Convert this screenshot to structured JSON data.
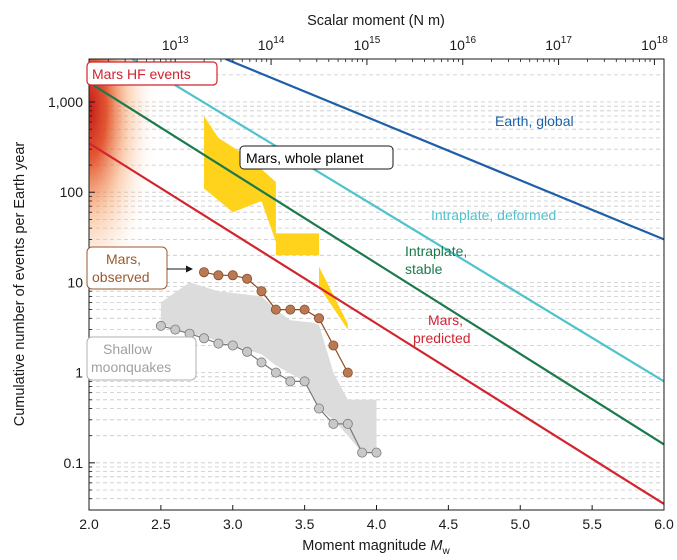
{
  "chart_data": {
    "type": "line",
    "xlabel": "Moment magnitude",
    "xlabel_symbol": "M",
    "xlabel_subscript": "w",
    "ylabel": "Cumulative number of events per Earth year",
    "x2label": "Scalar moment (N m)",
    "yscale": "log",
    "xlim": [
      2.0,
      6.0
    ],
    "ylim": [
      0.03,
      3000
    ],
    "x_ticks": [
      "2.0",
      "2.5",
      "3.0",
      "3.5",
      "4.0",
      "4.5",
      "5.0",
      "5.5",
      "6.0"
    ],
    "y_ticks": [
      {
        "value": 0.1,
        "label": "0.1"
      },
      {
        "value": 1,
        "label": "1"
      },
      {
        "value": 10,
        "label": "10"
      },
      {
        "value": 100,
        "label": "100"
      },
      {
        "value": 1000,
        "label": "1,000"
      }
    ],
    "x2_ticks": [
      {
        "base": "10",
        "exp": "13",
        "value": 10000000000000.0
      },
      {
        "base": "10",
        "exp": "14",
        "value": 100000000000000.0
      },
      {
        "base": "10",
        "exp": "15",
        "value": 1000000000000000.0
      },
      {
        "base": "10",
        "exp": "16",
        "value": 1e+16
      },
      {
        "base": "10",
        "exp": "17",
        "value": 1e+17
      },
      {
        "base": "10",
        "exp": "18",
        "value": 1e+18
      }
    ],
    "grid": "horizontal dashed minor",
    "lines": [
      {
        "name": "Earth, global",
        "color": "#1f5fa8",
        "x": [
          2.95,
          6.0
        ],
        "y": [
          3000,
          30
        ]
      },
      {
        "name": "Intraplate, deformed",
        "color": "#4fc3cc",
        "x": [
          2.3,
          6.0
        ],
        "y": [
          3000,
          0.8
        ]
      },
      {
        "name": "Intraplate, stable",
        "color": "#1a7a4c",
        "x": [
          2.0,
          6.0
        ],
        "y": [
          1650,
          0.16
        ]
      },
      {
        "name": "Mars, predicted",
        "color": "#d1242f",
        "x": [
          2.0,
          6.0
        ],
        "y": [
          350,
          0.035
        ]
      }
    ],
    "bands": [
      {
        "name": "Mars, whole planet",
        "color": "#ffd21c",
        "x": [
          2.8,
          2.9,
          3.1,
          3.3,
          3.3,
          3.6,
          3.6,
          3.8,
          3.8,
          3.6,
          3.6,
          3.3,
          3.3,
          3.2,
          3.0,
          2.8
        ],
        "y": [
          700,
          400,
          250,
          130,
          35,
          35,
          15,
          3.5,
          3.0,
          9,
          20,
          20,
          28,
          80,
          60,
          110
        ]
      },
      {
        "name": "Shallow moonquakes",
        "color": "#dcdcdc",
        "x": [
          2.5,
          2.7,
          2.9,
          3.2,
          3.3,
          3.4,
          3.55,
          3.6,
          3.7,
          3.8,
          3.9,
          4.0,
          4.0,
          3.9,
          3.8,
          3.7,
          3.6,
          3.5,
          3.3,
          3.2,
          3.0,
          2.8,
          2.6,
          2.5
        ],
        "y": [
          6,
          10,
          8,
          7,
          5,
          3.8,
          3.6,
          3.4,
          1.0,
          0.5,
          0.5,
          0.5,
          0.13,
          0.13,
          0.2,
          0.3,
          0.4,
          0.8,
          1.2,
          1.6,
          2.0,
          2.5,
          3.0,
          3.5
        ]
      }
    ],
    "series": [
      {
        "name": "Mars, observed",
        "color": "#8c4a1f",
        "marker": "#b87a55",
        "x": [
          2.8,
          2.9,
          3.0,
          3.1,
          3.2,
          3.3,
          3.4,
          3.5,
          3.6,
          3.7,
          3.8
        ],
        "y": [
          13,
          12,
          12,
          11,
          8,
          5,
          5,
          5,
          4,
          2,
          1
        ]
      },
      {
        "name": "Shallow moonquakes",
        "color": "#7a7a7a",
        "marker": "#c8c8c8",
        "x": [
          2.5,
          2.6,
          2.7,
          2.8,
          2.9,
          3.0,
          3.1,
          3.2,
          3.3,
          3.4,
          3.5,
          3.6,
          3.7,
          3.8,
          3.9,
          4.0
        ],
        "y": [
          3.3,
          3.0,
          2.7,
          2.4,
          2.1,
          2.0,
          1.7,
          1.3,
          1.0,
          0.8,
          0.8,
          0.4,
          0.27,
          0.27,
          0.13,
          0.13
        ]
      }
    ],
    "annotations": [
      {
        "text": "Mars HF events",
        "color": "#d1242f",
        "boxed": true
      },
      {
        "text": "Earth, global",
        "color": "#1f5fa8"
      },
      {
        "text": "Mars, whole planet",
        "color": "#000000",
        "boxed": true
      },
      {
        "text": "Intraplate, deformed",
        "color": "#4fc3cc"
      },
      {
        "text": "Intraplate,",
        "color": "#1a7a4c"
      },
      {
        "text": "stable",
        "color": "#1a7a4c"
      },
      {
        "text": "Mars,",
        "color": "#9a5a30",
        "boxed": true
      },
      {
        "text": "observed",
        "color": "#9a5a30"
      },
      {
        "text": "Mars,",
        "color": "#d1242f"
      },
      {
        "text": "predicted",
        "color": "#d1242f"
      },
      {
        "text": "Shallow",
        "color": "#a0a0a0",
        "boxed": true
      },
      {
        "text": "moonquakes",
        "color": "#a0a0a0"
      }
    ]
  }
}
